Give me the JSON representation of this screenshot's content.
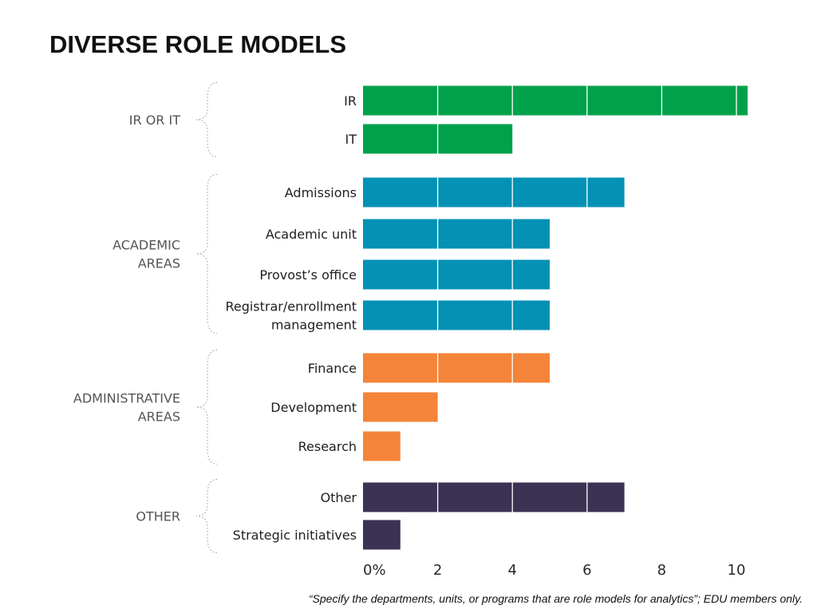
{
  "slide": {
    "title": "DIVERSE ROLE MODELS",
    "footnote": "“Specify the departments, units, or programs that are role models for analytics”; EDU members only."
  },
  "chart_data": {
    "type": "bar",
    "orientation": "horizontal",
    "x_ticks": [
      "0%",
      "2",
      "4",
      "6",
      "8",
      "10"
    ],
    "xlim": [
      0,
      10
    ],
    "grid": false,
    "groups": [
      {
        "label": [
          "IR OR IT"
        ],
        "color": "#00a14b",
        "bars": [
          {
            "label": [
              "IR"
            ],
            "value": 10.3
          },
          {
            "label": [
              "IT"
            ],
            "value": 4.0
          }
        ]
      },
      {
        "label": [
          "ACADEMIC",
          "AREAS"
        ],
        "color": "#0391b4",
        "bars": [
          {
            "label": [
              "Admissions"
            ],
            "value": 7.0
          },
          {
            "label": [
              "Academic unit"
            ],
            "value": 5.0
          },
          {
            "label": [
              "Provost’s office"
            ],
            "value": 5.0
          },
          {
            "label": [
              "Registrar/enrollment",
              "management"
            ],
            "value": 5.0
          }
        ]
      },
      {
        "label": [
          "ADMINISTRATIVE",
          "AREAS"
        ],
        "color": "#f48439",
        "bars": [
          {
            "label": [
              "Finance"
            ],
            "value": 5.0
          },
          {
            "label": [
              "Development"
            ],
            "value": 2.0
          },
          {
            "label": [
              "Research"
            ],
            "value": 1.0
          }
        ]
      },
      {
        "label": [
          "OTHER"
        ],
        "color": "#3c3254",
        "bars": [
          {
            "label": [
              "Other"
            ],
            "value": 7.0
          },
          {
            "label": [
              "Strategic initiatives"
            ],
            "value": 1.0
          }
        ]
      }
    ]
  }
}
